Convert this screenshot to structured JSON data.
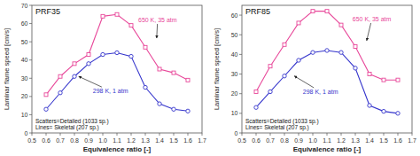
{
  "chart_data": [
    {
      "type": "line",
      "title": "PRF35",
      "x": [
        0.6,
        0.7,
        0.8,
        0.9,
        1.0,
        1.1,
        1.2,
        1.3,
        1.4,
        1.5,
        1.6
      ],
      "series": [
        {
          "color": "#e8489a",
          "marker": "square",
          "line_style": "solid",
          "values": [
            21,
            31,
            38,
            43,
            64,
            65,
            59,
            47,
            35,
            33,
            29
          ]
        },
        {
          "color": "#3535cc",
          "marker": "circle",
          "line_style": "solid",
          "values": [
            13,
            22,
            31,
            38,
            43,
            44,
            42,
            25,
            16,
            13,
            12
          ]
        }
      ],
      "annotations": [
        {
          "text": "650 K, 35 atm",
          "xy": [
            1.38,
            52
          ],
          "xytext": [
            1.25,
            62
          ],
          "color": "#e8489a"
        },
        {
          "text": "298 K, 1 atm",
          "xy": [
            0.83,
            31
          ],
          "xytext": [
            0.93,
            23
          ],
          "color": "#3535cc"
        }
      ],
      "note": "Scatters=Detailed (1033 sp.)\nLines= Skeletal (207 sp.)",
      "x_label": "Equivalence ratio [-]",
      "y_label": "Laminar flame speed [cm/s]",
      "xlim": [
        0.5,
        1.7
      ],
      "ylim": [
        0,
        70
      ],
      "xticks": [
        0.5,
        0.6,
        0.7,
        0.8,
        0.9,
        {
          "value": 1,
          "label": "1.0"
        },
        1.1,
        1.2,
        1.3,
        1.4,
        1.5,
        1.6,
        1.7
      ],
      "yticks": [
        0,
        10,
        20,
        30,
        40,
        50,
        60,
        70
      ],
      "grid": false
    },
    {
      "type": "line",
      "title": "PRF85",
      "x": [
        0.6,
        0.7,
        0.8,
        0.9,
        1.0,
        1.1,
        1.2,
        1.3,
        1.4,
        1.5,
        1.6
      ],
      "series": [
        {
          "color": "#e8489a",
          "marker": "square",
          "line_style": "solid",
          "values": [
            21,
            34,
            45,
            56,
            62,
            62,
            55,
            44,
            30,
            27,
            27
          ]
        },
        {
          "color": "#3535cc",
          "marker": "circle",
          "line_style": "solid",
          "values": [
            13,
            21,
            29,
            37,
            41,
            42,
            41,
            33,
            14,
            11,
            10
          ]
        }
      ],
      "annotations": [
        {
          "text": "650 K, 35 atm",
          "xy": [
            1.38,
            47
          ],
          "xytext": [
            1.28,
            58
          ],
          "color": "#e8489a"
        },
        {
          "text": "298 K, 1 atm",
          "xy": [
            0.87,
            29
          ],
          "xytext": [
            0.93,
            21
          ],
          "color": "#3535cc"
        }
      ],
      "note": "Scatters=Detailed (1033 sp.)\nLines= Skeletal (207 sp.)",
      "x_label": "Equivalence ratio [-]",
      "y_label": "Laminar flame speed [cm/s]",
      "xlim": [
        0.5,
        1.7
      ],
      "ylim": [
        0,
        65
      ],
      "xticks": [
        0.5,
        0.6,
        0.7,
        0.8,
        0.9,
        {
          "value": 1,
          "label": "1.0"
        },
        1.1,
        1.2,
        1.3,
        1.4,
        1.5,
        1.6,
        1.7
      ],
      "yticks": [
        0,
        10,
        20,
        30,
        40,
        50,
        60
      ],
      "grid": false
    }
  ]
}
